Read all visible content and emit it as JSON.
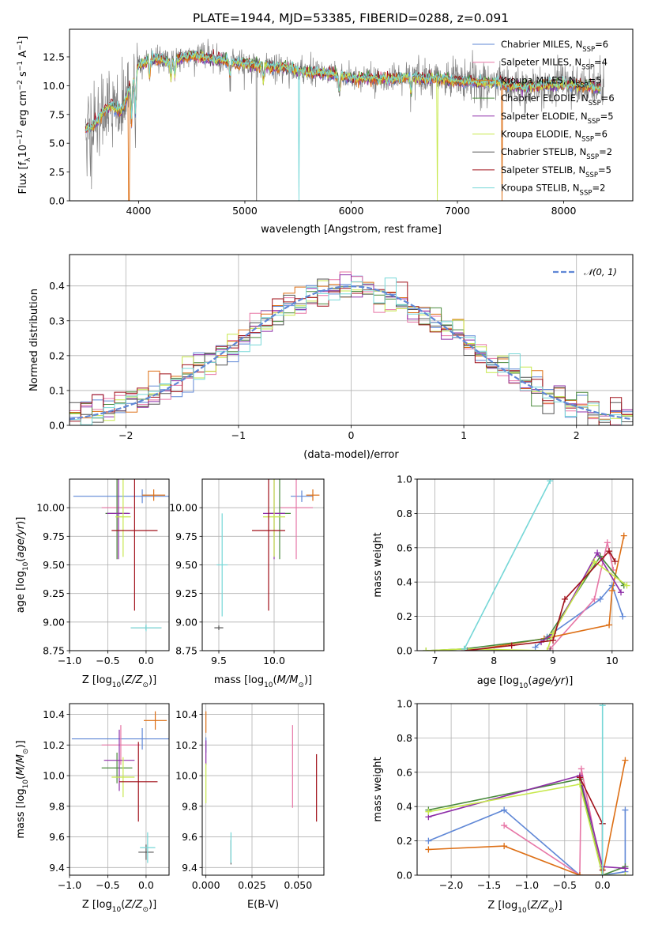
{
  "title": "PLATE=1944, MJD=53385, FIBERID=0288, z=0.091",
  "colors": {
    "Chabrier MILES": "#5f87d6",
    "Salpeter MILES": "#e776a6",
    "Kroupa MILES": "#dd6f15",
    "Chabrier ELODIE": "#4a8a3c",
    "Salpeter ELODIE": "#8e2ea8",
    "Kroupa ELODIE": "#c7e84c",
    "Chabrier STELIB": "#555555",
    "Salpeter STELIB": "#a0101a",
    "Kroupa STELIB": "#76d7d7",
    "data": "#808080",
    "gauss": "#5f87d6"
  },
  "legend_spectrum": [
    {
      "model": "Chabrier MILES",
      "prefix": "Chabrier MILES, N",
      "sub": "SSP",
      "suffix": "=6"
    },
    {
      "model": "Salpeter MILES",
      "prefix": "Salpeter MILES, N",
      "sub": "SSP",
      "suffix": "=4"
    },
    {
      "model": "Kroupa MILES",
      "prefix": "Kroupa MILES, N",
      "sub": "SSP",
      "suffix": "=5"
    },
    {
      "model": "Chabrier ELODIE",
      "prefix": "Chabrier ELODIE, N",
      "sub": "SSP",
      "suffix": "=6"
    },
    {
      "model": "Salpeter ELODIE",
      "prefix": "Salpeter ELODIE, N",
      "sub": "SSP",
      "suffix": "=5"
    },
    {
      "model": "Kroupa ELODIE",
      "prefix": "Kroupa ELODIE, N",
      "sub": "SSP",
      "suffix": "=6"
    },
    {
      "model": "Chabrier STELIB",
      "prefix": "Chabrier STELIB, N",
      "sub": "SSP",
      "suffix": "=2"
    },
    {
      "model": "Salpeter STELIB",
      "prefix": "Salpeter STELIB, N",
      "sub": "SSP",
      "suffix": "=5"
    },
    {
      "model": "Kroupa STELIB",
      "prefix": "Kroupa STELIB, N",
      "sub": "SSP",
      "suffix": "=2"
    }
  ],
  "chart_data": [
    {
      "id": "spectrum",
      "type": "line",
      "xlabel": "wavelength [Angstrom, rest frame]",
      "ylabel": "Flux [fλ10⁻¹⁷ erg cm⁻² s⁻¹ A⁻¹]",
      "xlim": [
        3350,
        8650
      ],
      "ylim": [
        0,
        14.9
      ],
      "xticks": [
        4000,
        5000,
        6000,
        7000,
        8000
      ],
      "yticks": [
        0.0,
        2.5,
        5.0,
        7.5,
        10.0,
        12.5
      ],
      "continuum": [
        [
          3500,
          6.2
        ],
        [
          3560,
          6.4
        ],
        [
          3620,
          7.0
        ],
        [
          3680,
          7.9
        ],
        [
          3750,
          8.3
        ],
        [
          3800,
          7.8
        ],
        [
          3850,
          8.0
        ],
        [
          3900,
          9.4
        ],
        [
          3950,
          10.6
        ],
        [
          4000,
          11.8
        ],
        [
          4100,
          12.2
        ],
        [
          4200,
          12.3
        ],
        [
          4300,
          12.0
        ],
        [
          4400,
          12.4
        ],
        [
          4500,
          12.6
        ],
        [
          4600,
          12.5
        ],
        [
          4700,
          12.3
        ],
        [
          4800,
          12.2
        ],
        [
          4900,
          12.0
        ],
        [
          5000,
          11.9
        ],
        [
          5200,
          11.7
        ],
        [
          5400,
          11.5
        ],
        [
          5600,
          11.2
        ],
        [
          5800,
          11.0
        ],
        [
          6000,
          10.7
        ],
        [
          6200,
          10.6
        ],
        [
          6400,
          10.6
        ],
        [
          6600,
          10.7
        ],
        [
          6800,
          10.6
        ],
        [
          7000,
          10.4
        ],
        [
          7200,
          10.3
        ],
        [
          7400,
          10.2
        ],
        [
          7600,
          9.9
        ],
        [
          7800,
          10.0
        ],
        [
          8000,
          10.1
        ],
        [
          8200,
          10.0
        ],
        [
          8350,
          9.8
        ]
      ],
      "absorption_lines": [
        3934,
        3969,
        4102,
        4304,
        4341,
        4861,
        5175,
        5890,
        6563
      ],
      "sky_dropouts": [
        [
          3910,
          "Kroupa MILES"
        ],
        [
          5110,
          "data"
        ],
        [
          5510,
          "Kroupa STELIB"
        ],
        [
          6810,
          "Kroupa ELODIE"
        ],
        [
          7420,
          "Kroupa MILES"
        ]
      ],
      "legend_placement": "upper-right"
    },
    {
      "id": "residuals",
      "type": "histogram",
      "xlabel": "(data-model)/error",
      "ylabel": "Normed distribution",
      "xlim": [
        -2.5,
        2.5
      ],
      "ylim": [
        0,
        0.49
      ],
      "xticks": [
        -2,
        -1,
        0,
        1,
        2
      ],
      "yticks": [
        0.0,
        0.1,
        0.2,
        0.3,
        0.4
      ],
      "bin_width": 0.1,
      "legend": [
        {
          "label": "𝒩(0, 1)",
          "style": "dashed"
        }
      ],
      "legend_placement": "upper-right"
    },
    {
      "id": "age_vs_Z",
      "type": "errorbar",
      "xlabel": "Z [log10(Z/Z⊙)]",
      "ylabel": "age [log10(age/yr)]",
      "xlim": [
        -1.0,
        0.3
      ],
      "ylim": [
        8.75,
        10.25
      ],
      "xticks": [
        -1.0,
        -0.5,
        0.0
      ],
      "yticks": [
        8.75,
        9.0,
        9.25,
        9.5,
        9.75,
        10.0
      ],
      "points": [
        {
          "model": "Chabrier MILES",
          "x": -0.05,
          "xerr": 0.9,
          "y": 10.1,
          "yerr": 0.06
        },
        {
          "model": "Salpeter MILES",
          "x": -0.38,
          "xerr": 0.2,
          "y": 10.0,
          "yerr": 0.45
        },
        {
          "model": "Kroupa MILES",
          "x": 0.1,
          "xerr": 0.15,
          "y": 10.11,
          "yerr": 0.05
        },
        {
          "model": "Chabrier ELODIE",
          "x": -0.38,
          "xerr": 0.15,
          "y": 9.95,
          "yerr": 0.4
        },
        {
          "model": "Salpeter ELODIE",
          "x": -0.36,
          "xerr": 0.15,
          "y": 9.95,
          "yerr": 0.4
        },
        {
          "model": "Kroupa ELODIE",
          "x": -0.3,
          "xerr": 0.1,
          "y": 9.92,
          "yerr": 0.35
        },
        {
          "model": "Chabrier STELIB",
          "x": 0.0,
          "xerr": 0.2,
          "y": 8.95,
          "yerr": 0.02
        },
        {
          "model": "Salpeter STELIB",
          "x": -0.15,
          "xerr": 0.3,
          "y": 9.8,
          "yerr": 0.7
        },
        {
          "model": "Kroupa STELIB",
          "x": 0.0,
          "xerr": 0.2,
          "y": 8.95,
          "yerr": 0.03
        }
      ]
    },
    {
      "id": "age_vs_mass",
      "type": "errorbar",
      "xlabel": "mass [log10(M/M⊙)]",
      "xlim": [
        9.35,
        10.45
      ],
      "ylim": [
        8.75,
        10.25
      ],
      "xticks": [
        9.5,
        10.0
      ],
      "yticks": [
        8.75,
        9.0,
        9.25,
        9.5,
        9.75,
        10.0
      ],
      "points": [
        {
          "model": "Chabrier MILES",
          "x": 10.25,
          "xerr": 0.1,
          "y": 10.1,
          "yerr": 0.05
        },
        {
          "model": "Salpeter MILES",
          "x": 10.2,
          "xerr": 0.15,
          "y": 10.0,
          "yerr": 0.45
        },
        {
          "model": "Kroupa MILES",
          "x": 10.35,
          "xerr": 0.06,
          "y": 10.11,
          "yerr": 0.05
        },
        {
          "model": "Chabrier ELODIE",
          "x": 10.05,
          "xerr": 0.1,
          "y": 9.95,
          "yerr": 0.4
        },
        {
          "model": "Salpeter ELODIE",
          "x": 10.0,
          "xerr": 0.1,
          "y": 9.95,
          "yerr": 0.4
        },
        {
          "model": "Kroupa ELODIE",
          "x": 10.0,
          "xerr": 0.1,
          "y": 9.92,
          "yerr": 0.35
        },
        {
          "model": "Chabrier STELIB",
          "x": 9.5,
          "xerr": 0.04,
          "y": 8.95,
          "yerr": 0.02
        },
        {
          "model": "Salpeter STELIB",
          "x": 9.95,
          "xerr": 0.15,
          "y": 9.8,
          "yerr": 0.7
        },
        {
          "model": "Kroupa STELIB",
          "x": 9.53,
          "xerr": 0.05,
          "y": 9.5,
          "yerr": 0.45
        }
      ]
    },
    {
      "id": "mass_weight_vs_age",
      "type": "line",
      "xlabel": "age [log10(age/yr)]",
      "ylabel": "mass weight",
      "xlim": [
        6.7,
        10.35
      ],
      "ylim": [
        0,
        1
      ],
      "xticks": [
        7,
        8,
        9,
        10
      ],
      "yticks": [
        0.0,
        0.2,
        0.4,
        0.6,
        0.8,
        1.0
      ],
      "series": [
        {
          "model": "Chabrier MILES",
          "x": [
            8.7,
            8.9,
            9.8,
            10.0,
            10.18
          ],
          "y": [
            0.02,
            0.08,
            0.3,
            0.38,
            0.2
          ]
        },
        {
          "model": "Salpeter MILES",
          "x": [
            8.95,
            9.7,
            9.92,
            10.02
          ],
          "y": [
            0.01,
            0.3,
            0.63,
            0.47
          ]
        },
        {
          "model": "Kroupa MILES",
          "x": [
            7.6,
            8.85,
            9.95,
            10.0,
            10.2
          ],
          "y": [
            0.0,
            0.07,
            0.15,
            0.35,
            0.67
          ]
        },
        {
          "model": "Chabrier ELODIE",
          "x": [
            6.85,
            7.5,
            8.9,
            9.8,
            10.2
          ],
          "y": [
            0.0,
            0.01,
            0.07,
            0.55,
            0.38
          ]
        },
        {
          "model": "Salpeter ELODIE",
          "x": [
            8.8,
            9.0,
            9.75,
            10.15
          ],
          "y": [
            0.05,
            0.1,
            0.57,
            0.34
          ]
        },
        {
          "model": "Kroupa ELODIE",
          "x": [
            6.85,
            7.5,
            8.9,
            9.0,
            9.7,
            10.25
          ],
          "y": [
            0.0,
            0.01,
            0.0,
            0.1,
            0.52,
            0.38
          ]
        },
        {
          "model": "Chabrier STELIB",
          "x": [
            7.55,
            8.95
          ],
          "y": [
            0.0,
            0.0
          ]
        },
        {
          "model": "Salpeter STELIB",
          "x": [
            7.5,
            8.3,
            9.0,
            9.2,
            9.95,
            10.05
          ],
          "y": [
            0.0,
            0.03,
            0.06,
            0.3,
            0.58,
            0.52
          ]
        },
        {
          "model": "Kroupa STELIB",
          "x": [
            7.5,
            8.95
          ],
          "y": [
            0.01,
            0.99
          ]
        }
      ]
    },
    {
      "id": "mass_vs_Z",
      "type": "errorbar",
      "xlabel": "Z [log10(Z/Z⊙)]",
      "ylabel": "mass [log10(M/M⊙)]",
      "xlim": [
        -1.0,
        0.3
      ],
      "ylim": [
        9.35,
        10.47
      ],
      "xticks": [
        -1.0,
        -0.5,
        0.0
      ],
      "yticks": [
        9.4,
        9.6,
        9.8,
        10.0,
        10.2,
        10.4
      ],
      "points": [
        {
          "model": "Chabrier MILES",
          "x": -0.05,
          "xerr": 0.92,
          "y": 10.24,
          "yerr": 0.07
        },
        {
          "model": "Salpeter MILES",
          "x": -0.33,
          "xerr": 0.25,
          "y": 10.2,
          "yerr": 0.13
        },
        {
          "model": "Kroupa MILES",
          "x": 0.12,
          "xerr": 0.15,
          "y": 10.36,
          "yerr": 0.06
        },
        {
          "model": "Chabrier ELODIE",
          "x": -0.38,
          "xerr": 0.2,
          "y": 10.05,
          "yerr": 0.1
        },
        {
          "model": "Salpeter ELODIE",
          "x": -0.35,
          "xerr": 0.2,
          "y": 10.1,
          "yerr": 0.2
        },
        {
          "model": "Kroupa ELODIE",
          "x": -0.3,
          "xerr": 0.15,
          "y": 9.99,
          "yerr": 0.13
        },
        {
          "model": "Chabrier STELIB",
          "x": 0.0,
          "xerr": 0.1,
          "y": 9.5,
          "yerr": 0.05
        },
        {
          "model": "Salpeter STELIB",
          "x": -0.1,
          "xerr": 0.25,
          "y": 9.96,
          "yerr": 0.26
        },
        {
          "model": "Kroupa STELIB",
          "x": 0.02,
          "xerr": 0.1,
          "y": 9.53,
          "yerr": 0.1
        }
      ]
    },
    {
      "id": "mass_vs_ebv",
      "type": "errorbar",
      "xlabel": "E(B-V)",
      "xlim": [
        -0.002,
        0.064
      ],
      "ylim": [
        9.35,
        10.47
      ],
      "xticks": [
        0.0,
        0.025,
        0.05
      ],
      "yticks": [
        9.4,
        9.6,
        9.8,
        10.0,
        10.2,
        10.4
      ],
      "points": [
        {
          "model": "Chabrier MILES",
          "x": 0.0,
          "y": 10.2,
          "yerr": 0.05
        },
        {
          "model": "Salpeter MILES",
          "x": 0.047,
          "y": 10.06,
          "yerr": 0.27
        },
        {
          "model": "Kroupa MILES",
          "x": 0.0,
          "y": 10.35,
          "yerr": 0.07
        },
        {
          "model": "Salpeter ELODIE",
          "x": 0.0,
          "y": 10.15,
          "yerr": 0.08
        },
        {
          "model": "Kroupa ELODIE",
          "x": 0.0,
          "y": 9.95,
          "yerr": 0.13
        },
        {
          "model": "Chabrier STELIB",
          "x": 0.0136,
          "y": 9.5,
          "yerr": 0.08
        },
        {
          "model": "Salpeter STELIB",
          "x": 0.06,
          "y": 9.92,
          "yerr": 0.22
        },
        {
          "model": "Kroupa STELIB",
          "x": 0.0136,
          "y": 9.53,
          "yerr": 0.1
        }
      ]
    },
    {
      "id": "mass_weight_vs_Z",
      "type": "line",
      "xlabel": "Z [log10(Z/Z⊙)]",
      "ylabel": "mass weight",
      "xlim": [
        -2.45,
        0.4
      ],
      "ylim": [
        0,
        1
      ],
      "xticks": [
        -2.0,
        -1.5,
        -1.0,
        -0.5,
        0.0
      ],
      "yticks": [
        0.0,
        0.2,
        0.4,
        0.6,
        0.8,
        1.0
      ],
      "series": [
        {
          "model": "Chabrier MILES",
          "x": [
            -2.3,
            -1.3,
            -0.3,
            0.0,
            0.3,
            0.3
          ],
          "y": [
            0.2,
            0.38,
            0.0,
            0.0,
            0.02,
            0.38
          ]
        },
        {
          "model": "Salpeter MILES",
          "x": [
            -1.3,
            -0.3,
            -0.28,
            0.0
          ],
          "y": [
            0.29,
            0.0,
            0.62,
            0.0
          ]
        },
        {
          "model": "Kroupa MILES",
          "x": [
            -2.3,
            -1.3,
            -0.3,
            0.0,
            0.3
          ],
          "y": [
            0.15,
            0.17,
            0.0,
            0.0,
            0.67
          ]
        },
        {
          "model": "Chabrier ELODIE",
          "x": [
            -2.3,
            -0.3,
            0.0,
            0.3
          ],
          "y": [
            0.38,
            0.56,
            0.0,
            0.05
          ]
        },
        {
          "model": "Salpeter ELODIE",
          "x": [
            -2.3,
            -0.3,
            0.0,
            0.3
          ],
          "y": [
            0.34,
            0.58,
            0.05,
            0.04
          ]
        },
        {
          "model": "Kroupa ELODIE",
          "x": [
            -2.3,
            -0.3,
            0.0,
            0.3
          ],
          "y": [
            0.37,
            0.53,
            0.0,
            0.0
          ]
        },
        {
          "model": "Chabrier STELIB",
          "x": [
            0.0,
            0.0
          ],
          "y": [
            0.3,
            0.0
          ]
        },
        {
          "model": "Salpeter STELIB",
          "x": [
            -0.3,
            0.0,
            0.0
          ],
          "y": [
            0.57,
            0.3,
            0.03
          ]
        },
        {
          "model": "Kroupa STELIB",
          "x": [
            0.0,
            0.0
          ],
          "y": [
            0.0,
            0.99
          ]
        }
      ]
    }
  ]
}
